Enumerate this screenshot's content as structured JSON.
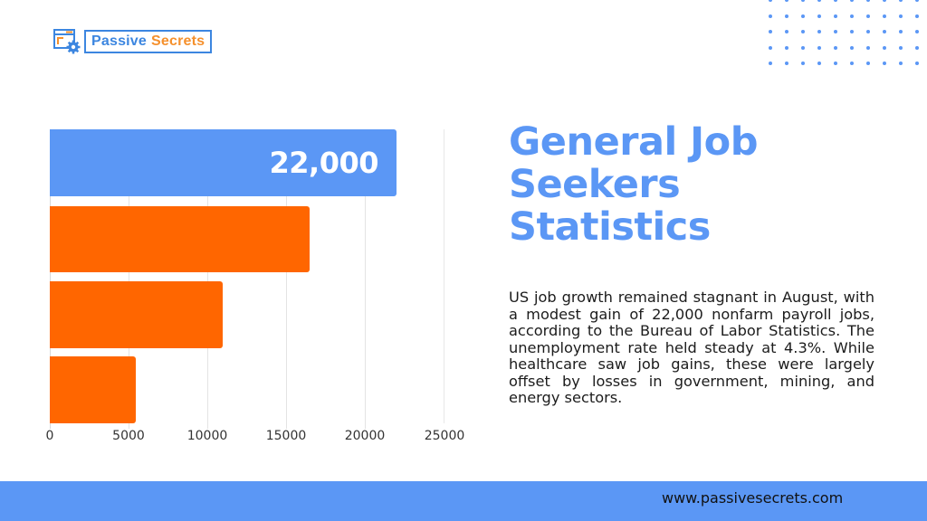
{
  "brand": {
    "logo_icon": "browser-gear-icon",
    "name_part1": "Passive",
    "name_part2": "Secrets"
  },
  "decoration": {
    "dot_grid": "dot-grid-pattern",
    "dot_color": "#5b97f5"
  },
  "colors": {
    "primary_blue": "#5b97f5",
    "accent_orange": "#ff6600",
    "text_dark": "#1c1c1c"
  },
  "title": "General Job Seekers Statistics",
  "description": "US job growth remained stagnant in August, with a modest gain of 22,000 nonfarm payroll jobs, according to the Bureau of Labor Statistics. The unemployment rate held steady at 4.3%. While healthcare saw job gains, these were largely offset by losses in government, mining, and energy sectors.",
  "footer": {
    "url": "www.passivesecrets.com"
  },
  "chart_data": {
    "type": "bar",
    "orientation": "horizontal",
    "title": "",
    "xlabel": "",
    "ylabel": "",
    "categories": [
      "",
      "",
      "",
      ""
    ],
    "values": [
      22000,
      16500,
      11000,
      5500
    ],
    "bar_colors": [
      "#5b97f5",
      "#ff6600",
      "#ff6600",
      "#ff6600"
    ],
    "data_labels": [
      "22,000",
      "",
      "",
      ""
    ],
    "xlim": [
      0,
      25000
    ],
    "x_ticks": [
      "0",
      "5000",
      "10000",
      "15000",
      "20000",
      "25000"
    ],
    "grid": true,
    "legend": "none"
  }
}
